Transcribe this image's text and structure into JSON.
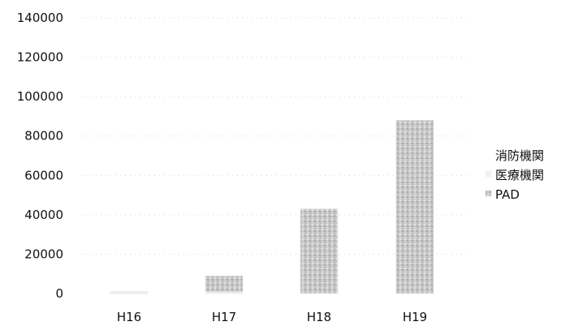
{
  "chart_data": {
    "type": "bar",
    "stacked": true,
    "categories": [
      "H16",
      "H17",
      "H18",
      "H19"
    ],
    "series": [
      {
        "name": "消防機関",
        "values": [
          0,
          0,
          0,
          0
        ],
        "color": "#ffffff"
      },
      {
        "name": "医療機関",
        "values": [
          1000,
          1000,
          0,
          0
        ],
        "color": "#f0f0f0"
      },
      {
        "name": "PAD",
        "values": [
          0,
          8000,
          43000,
          88000
        ],
        "color": "#c8c8c8"
      }
    ],
    "ylim": [
      0,
      140000
    ],
    "yticks": [
      0,
      20000,
      40000,
      60000,
      80000,
      100000,
      120000,
      140000
    ],
    "ytick_labels": [
      "0",
      "20000",
      "40000",
      "60000",
      "80000",
      "100000",
      "120000",
      "140000"
    ],
    "grid": true,
    "legend_position": "right"
  }
}
